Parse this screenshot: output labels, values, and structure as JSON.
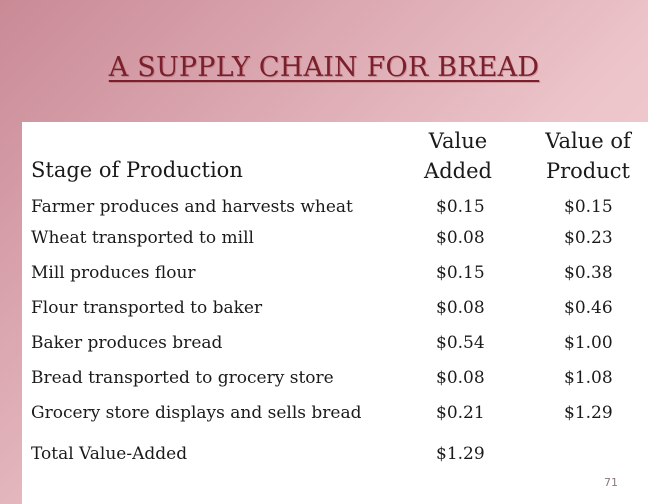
{
  "title": "A SUPPLY CHAIN FOR BREAD",
  "table": {
    "headers": {
      "stage": "Stage of Production",
      "added_line1": "Value",
      "added_line2": "Added",
      "product_line1": "Value of",
      "product_line2": "Product"
    },
    "rows": [
      {
        "stage": "Farmer produces and harvests wheat",
        "added": "$0.15",
        "product": "$0.15"
      },
      {
        "stage": "Wheat transported to mill",
        "added": "$0.08",
        "product": "$0.23"
      },
      {
        "stage": "Mill produces flour",
        "added": "$0.15",
        "product": "$0.38"
      },
      {
        "stage": "Flour transported to baker",
        "added": "$0.08",
        "product": "$0.46"
      },
      {
        "stage": "Baker produces bread",
        "added": "$0.54",
        "product": "$1.00"
      },
      {
        "stage": "Bread transported to grocery store",
        "added": "$0.08",
        "product": "$1.08"
      },
      {
        "stage": "Grocery store displays and sells bread",
        "added": "$0.21",
        "product": "$1.29"
      }
    ],
    "total": {
      "label": "Total Value-Added",
      "added": "$1.29"
    }
  },
  "page_number": "71"
}
